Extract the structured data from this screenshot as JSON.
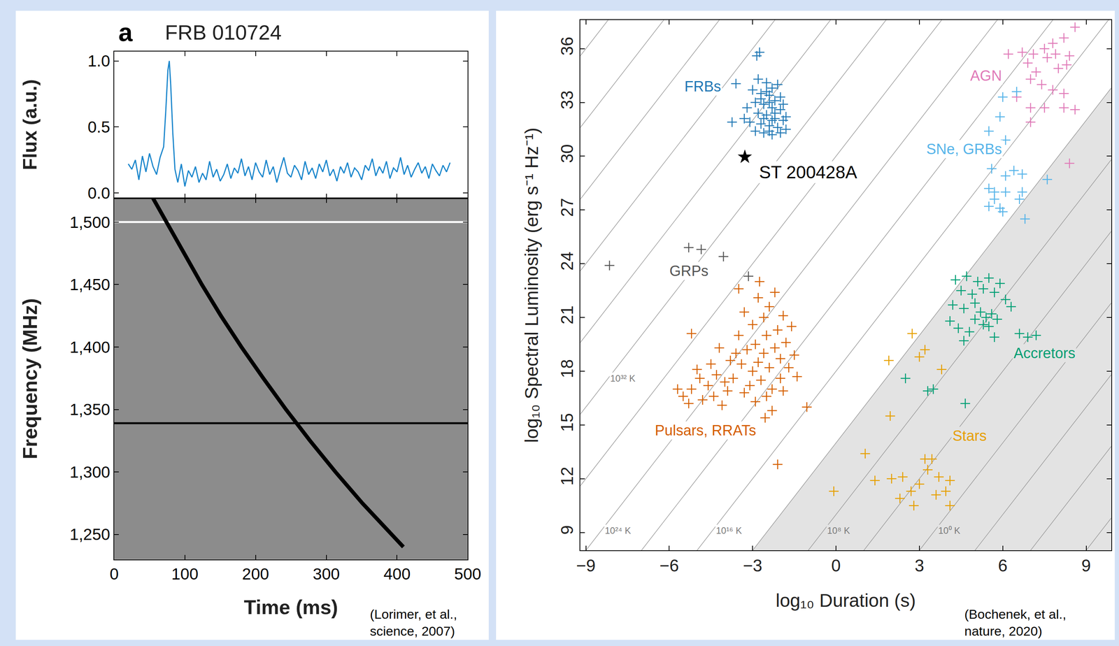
{
  "chart_data": [
    {
      "type": "line",
      "panel": "a",
      "title": "FRB 010724",
      "y_label": "Flux (a.u.)",
      "source": "(Lorimer, et al., science, 2007)",
      "color": "#1a86cc",
      "grid": false,
      "tick_labels": "y",
      "x": [
        20,
        25,
        30,
        35,
        40,
        45,
        50,
        55,
        60,
        65,
        70,
        73,
        76,
        78,
        80,
        83,
        86,
        90,
        95,
        100,
        105,
        110,
        115,
        120,
        125,
        130,
        135,
        140,
        145,
        150,
        155,
        160,
        165,
        170,
        175,
        180,
        185,
        190,
        195,
        200,
        205,
        210,
        215,
        220,
        225,
        230,
        235,
        240,
        245,
        250,
        255,
        260,
        265,
        270,
        275,
        280,
        285,
        290,
        295,
        300,
        305,
        310,
        315,
        320,
        325,
        330,
        335,
        340,
        345,
        350,
        355,
        360,
        365,
        370,
        375,
        380,
        385,
        390,
        395,
        400,
        405,
        410,
        415,
        420,
        425,
        430,
        435,
        440,
        445,
        450,
        455,
        460,
        465,
        470,
        475
      ],
      "values": [
        0.22,
        0.18,
        0.25,
        0.1,
        0.28,
        0.16,
        0.3,
        0.2,
        0.14,
        0.27,
        0.35,
        0.62,
        0.93,
        1.0,
        0.82,
        0.45,
        0.18,
        0.08,
        0.22,
        0.05,
        0.17,
        0.12,
        0.2,
        0.08,
        0.15,
        0.1,
        0.24,
        0.12,
        0.18,
        0.09,
        0.14,
        0.22,
        0.11,
        0.19,
        0.15,
        0.26,
        0.13,
        0.2,
        0.1,
        0.23,
        0.16,
        0.12,
        0.25,
        0.14,
        0.2,
        0.08,
        0.18,
        0.27,
        0.15,
        0.12,
        0.21,
        0.17,
        0.1,
        0.24,
        0.14,
        0.19,
        0.11,
        0.22,
        0.16,
        0.25,
        0.13,
        0.18,
        0.09,
        0.2,
        0.15,
        0.23,
        0.12,
        0.19,
        0.16,
        0.1,
        0.21,
        0.17,
        0.26,
        0.13,
        0.2,
        0.15,
        0.24,
        0.11,
        0.19,
        0.16,
        0.27,
        0.14,
        0.21,
        0.12,
        0.18,
        0.23,
        0.15,
        0.2,
        0.11,
        0.22,
        0.17,
        0.13,
        0.21,
        0.16,
        0.23
      ],
      "xlim": [
        0,
        500
      ],
      "xticks": [
        0,
        100,
        200,
        300,
        400,
        500
      ],
      "ylim": [
        -0.04,
        1.07
      ],
      "yticks": [
        {
          "value": 0,
          "label": "0.0"
        },
        {
          "value": 0.5,
          "label": "0.5"
        },
        {
          "value": 1,
          "label": "1.0"
        }
      ]
    },
    {
      "type": "line",
      "x_label": "Time (ms)",
      "y_label": "Frequency (MHz)",
      "color": "#000000",
      "grid": false,
      "x": [
        55,
        74,
        98,
        124,
        151,
        180,
        211,
        243,
        277,
        313,
        351,
        392,
        409
      ],
      "values": [
        1519,
        1500,
        1475,
        1450,
        1425,
        1400,
        1375,
        1350,
        1325,
        1300,
        1275,
        1250,
        1240
      ],
      "horizontal_lines": [
        {
          "value": 1500,
          "color": "#ffffff"
        },
        {
          "value": 1339,
          "color": "#000000"
        }
      ],
      "xlim": [
        0,
        500
      ],
      "xticks": [
        0,
        100,
        200,
        300,
        400,
        500
      ],
      "ylim": [
        1230,
        1519
      ],
      "yticks": [
        {
          "value": 1250,
          "label": "1,250"
        },
        {
          "value": 1300,
          "label": "1,300"
        },
        {
          "value": 1350,
          "label": "1,350"
        },
        {
          "value": 1400,
          "label": "1,400"
        },
        {
          "value": 1450,
          "label": "1,450"
        },
        {
          "value": 1500,
          "label": "1,500"
        }
      ]
    },
    {
      "type": "scatter",
      "x_label": "log₁₀ Duration (s)",
      "y_label": "log₁₀ Spectral Luminosity (erg s⁻¹ Hz⁻¹)",
      "source": "(Bochenek, et al., nature, 2020)",
      "grid": false,
      "marker": "cross",
      "xlim": [
        -9.2,
        9.9
      ],
      "xticks": [
        {
          "value": -9,
          "label": "−9"
        },
        {
          "value": -6,
          "label": "−6"
        },
        {
          "value": -3,
          "label": "−3"
        },
        0,
        3,
        6,
        9
      ],
      "ylim": [
        8,
        37.6
      ],
      "yticks": [
        9,
        12,
        15,
        18,
        21,
        24,
        27,
        30,
        33,
        36
      ],
      "temperature_lines": {
        "slope": 2,
        "intercepts": [
          -10,
          -6,
          -2,
          2,
          6,
          10,
          14,
          18,
          22,
          26,
          30,
          34,
          38,
          42,
          46,
          50,
          54
        ]
      },
      "shaded_below_intercept": 14,
      "temperature_labels": [
        {
          "text": "10³² K",
          "x": -8.15,
          "y": 17.6
        },
        {
          "text": "10²⁴ K",
          "x": -8.35,
          "y": 9.1
        },
        {
          "text": "10¹⁶ K",
          "x": -4.35,
          "y": 9.1
        },
        {
          "text": "10⁸ K",
          "x": -0.35,
          "y": 9.1
        },
        {
          "text": "10⁰ K",
          "x": 3.65,
          "y": 9.1
        }
      ],
      "series": [
        {
          "name": "FRBs",
          "color": "#1f77b4",
          "label_x": -4.8,
          "label_y": 33.9,
          "x": [
            -2.85,
            -2.75,
            -3.6,
            -3.74,
            -2.8,
            -2.5,
            -2.3,
            -2.7,
            -2.4,
            -2.2,
            -2.9,
            -2.6,
            -2.3,
            -2.0,
            -2.8,
            -2.5,
            -2.2,
            -1.9,
            -3.1,
            -2.7,
            -2.4,
            -2.1,
            -1.8,
            -2.9,
            -2.6,
            -2.3,
            -2.0,
            -2.5,
            -2.1,
            -2.4,
            -2.7,
            -2.0,
            -2.2,
            -1.9,
            -3.2,
            -3.0,
            -2.3,
            -2.6,
            -1.8,
            -2.4,
            -3.3
          ],
          "values": [
            35.6,
            35.8,
            34.05,
            31.9,
            34.3,
            34.1,
            33.8,
            33.5,
            33.4,
            33.1,
            33.0,
            32.9,
            32.7,
            32.6,
            32.4,
            32.3,
            32.1,
            32.0,
            31.9,
            31.8,
            31.7,
            31.6,
            31.5,
            31.4,
            31.3,
            31.2,
            31.3,
            33.6,
            34.0,
            33.0,
            33.2,
            33.3,
            32.4,
            32.9,
            32.7,
            33.7,
            32.0,
            32.1,
            32.2,
            31.4,
            32.1
          ]
        },
        {
          "name": "ST 200428A",
          "color": "#000000",
          "marker": "star",
          "label_x": -1.0,
          "label_y": 29.1,
          "x": [
            -3.28
          ],
          "values": [
            29.96
          ]
        },
        {
          "name": "GRPs",
          "color": "#555555",
          "label_x": -5.3,
          "label_y": 23.6,
          "x": [
            -8.15,
            -5.3,
            -4.85,
            -4.05,
            -3.15
          ],
          "values": [
            23.9,
            24.9,
            24.8,
            24.4,
            23.3
          ]
        },
        {
          "name": "Pulsars, RRATs",
          "color": "#d55e00",
          "label_x": -4.7,
          "label_y": 14.7,
          "x": [
            -2.8,
            -2.6,
            -3.0,
            -2.4,
            -2.9,
            -2.5,
            -3.2,
            -2.2,
            -3.4,
            -2.0,
            -2.7,
            -3.1,
            -2.3,
            -2.6,
            -3.0,
            -2.1,
            -3.5,
            -1.8,
            -2.4,
            -2.8,
            -3.3,
            -1.9,
            -2.2,
            -3.6,
            -1.7,
            -2.0,
            -3.8,
            -2.5,
            -2.9,
            -3.3,
            -1.6,
            -3.7,
            -4.0,
            -4.3,
            -4.6,
            -4.9,
            -5.2,
            -5.5,
            -5.7,
            -5.3,
            -4.8,
            -4.4,
            -4.1,
            -3.9,
            -5.0,
            -4.5,
            -5.2,
            -1.05,
            -2.1,
            -2.55,
            -2.75,
            -1.5,
            -3.5,
            -2.3,
            -1.9,
            -4.2,
            -1.4
          ],
          "values": [
            18.5,
            19.0,
            18.0,
            18.2,
            19.5,
            20.0,
            19.2,
            19.3,
            18.4,
            18.7,
            17.5,
            17.2,
            17.0,
            21.0,
            20.6,
            20.3,
            20.0,
            19.6,
            21.6,
            22.1,
            21.3,
            21.1,
            22.4,
            19.0,
            18.2,
            17.6,
            18.6,
            16.6,
            16.3,
            16.8,
            20.5,
            17.6,
            17.4,
            17.8,
            17.2,
            17.6,
            17.0,
            16.6,
            17.0,
            16.2,
            16.4,
            16.6,
            16.1,
            16.9,
            18.1,
            18.4,
            20.1,
            16.0,
            12.8,
            15.4,
            23.0,
            18.9,
            22.6,
            15.8,
            16.9,
            19.3,
            17.7
          ]
        },
        {
          "name": "AGN",
          "color": "#e07ab8",
          "label_x": 5.4,
          "label_y": 34.5,
          "x": [
            6.2,
            6.7,
            7.1,
            7.5,
            7.8,
            8.2,
            8.6,
            7.6,
            7.9,
            8.4,
            7.2,
            7.0,
            7.4,
            7.8,
            8.2,
            6.5,
            7.0,
            7.5,
            8.2,
            8.6,
            7.0,
            8.4,
            8.0,
            8.3,
            6.9
          ],
          "values": [
            35.7,
            35.8,
            35.7,
            36.0,
            36.3,
            36.6,
            37.2,
            35.5,
            35.7,
            35.6,
            34.7,
            34.3,
            34.0,
            33.7,
            33.5,
            33.3,
            32.7,
            32.7,
            32.7,
            32.6,
            31.9,
            29.6,
            34.9,
            35.1,
            35.2
          ]
        },
        {
          "name": "SNe, GRBs",
          "color": "#56b4e9",
          "label_x": 4.6,
          "label_y": 30.4,
          "x": [
            6.0,
            6.5,
            5.9,
            5.5,
            6.1,
            5.6,
            6.1,
            5.5,
            5.7,
            6.4,
            6.7,
            7.6,
            6.1,
            5.5,
            5.9,
            6.7,
            6.6,
            6.0,
            6.8,
            5.7
          ],
          "values": [
            33.3,
            33.6,
            32.2,
            31.4,
            30.9,
            29.3,
            28.9,
            28.2,
            28.0,
            29.2,
            29.0,
            28.7,
            28.0,
            27.2,
            27.1,
            28.0,
            27.6,
            26.9,
            26.5,
            27.6
          ]
        },
        {
          "name": "Accretors",
          "color": "#009e73",
          "label_x": 7.5,
          "label_y": 19.0,
          "x": [
            4.3,
            4.7,
            5.1,
            5.5,
            5.9,
            4.5,
            4.9,
            5.3,
            5.7,
            6.1,
            4.2,
            4.6,
            5.0,
            5.2,
            5.4,
            5.6,
            5.8,
            5.3,
            5.5,
            4.4,
            4.8,
            5.0,
            6.3,
            6.6,
            6.9,
            7.2,
            4.1,
            5.7,
            4.6,
            2.5,
            3.3,
            3.5,
            4.65
          ],
          "values": [
            23.1,
            23.3,
            23.0,
            23.2,
            22.9,
            22.5,
            22.3,
            22.6,
            22.4,
            22.0,
            21.7,
            21.5,
            21.8,
            21.3,
            21.0,
            21.2,
            20.9,
            20.6,
            20.5,
            20.4,
            20.2,
            20.9,
            21.6,
            20.1,
            19.9,
            20.0,
            20.8,
            19.9,
            19.7,
            17.6,
            16.9,
            17.0,
            16.2
          ]
        },
        {
          "name": "Stars",
          "color": "#e69f00",
          "label_x": 4.8,
          "label_y": 14.4,
          "x": [
            2.74,
            1.9,
            3.2,
            3.8,
            3.0,
            1.95,
            1.05,
            -0.08,
            1.4,
            2.4,
            2.7,
            3.0,
            3.2,
            3.45,
            3.3,
            3.7,
            3.95,
            4.1,
            2.3,
            2.8,
            4.1,
            3.6,
            2.0
          ],
          "values": [
            20.1,
            18.6,
            19.2,
            18.1,
            18.8,
            15.5,
            13.4,
            11.3,
            11.9,
            12.1,
            11.3,
            11.7,
            13.1,
            13.1,
            12.5,
            12.1,
            11.3,
            11.9,
            10.9,
            10.5,
            10.5,
            11.1,
            12.0
          ]
        }
      ]
    }
  ]
}
